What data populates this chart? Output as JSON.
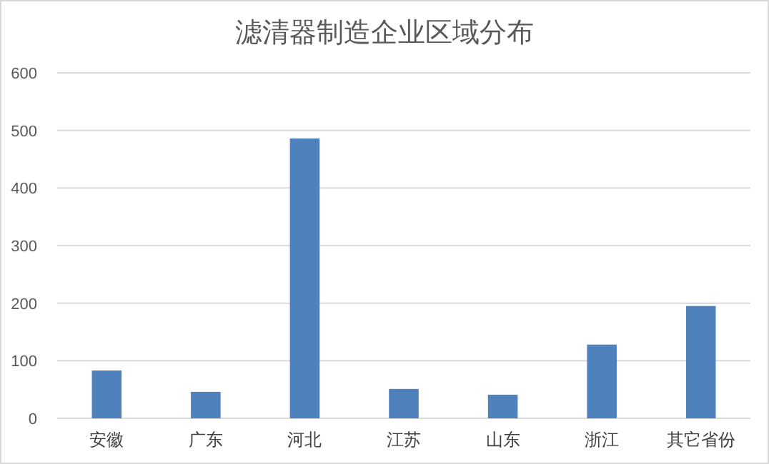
{
  "chart_data": {
    "type": "bar",
    "title": "滤清器制造企业区域分布",
    "categories": [
      "安徽",
      "广东",
      "河北",
      "江苏",
      "山东",
      "浙江",
      "其它省份"
    ],
    "values": [
      83,
      46,
      486,
      51,
      41,
      128,
      195
    ],
    "color": "#4f81bd",
    "ylim": [
      0,
      600
    ],
    "yticks": [
      0,
      100,
      200,
      300,
      400,
      500,
      600
    ],
    "grid": "y"
  }
}
